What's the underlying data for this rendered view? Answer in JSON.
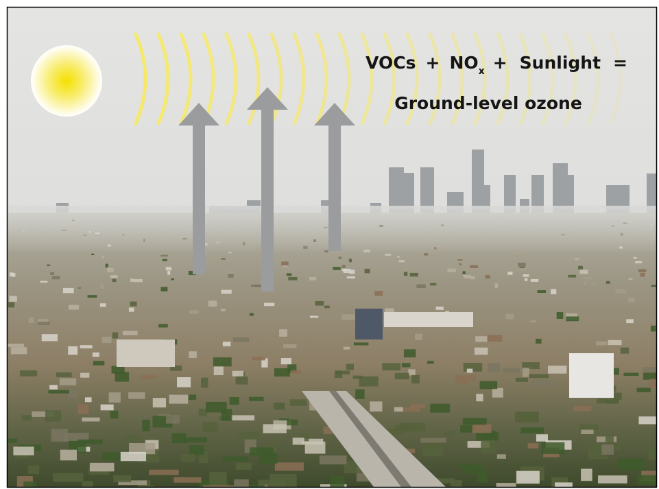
{
  "formula": {
    "line1": [
      "VOCs",
      "+",
      "NO",
      "x",
      "+",
      "Sunlight",
      "="
    ],
    "line2": "Ground-level ozone"
  }
}
